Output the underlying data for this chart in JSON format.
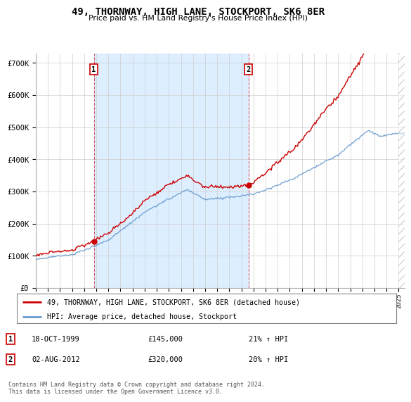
{
  "title": "49, THORNWAY, HIGH LANE, STOCKPORT, SK6 8ER",
  "subtitle": "Price paid vs. HM Land Registry's House Price Index (HPI)",
  "ylabel_ticks": [
    "£0",
    "£100K",
    "£200K",
    "£300K",
    "£400K",
    "£500K",
    "£600K",
    "£700K"
  ],
  "ylim": [
    0,
    730000
  ],
  "xlim_start": 1995.0,
  "xlim_end": 2025.5,
  "sale1_date": 1999.8,
  "sale1_price": 145000,
  "sale1_label": "1",
  "sale2_date": 2012.58,
  "sale2_price": 320000,
  "sale2_label": "2",
  "legend_house": "49, THORNWAY, HIGH LANE, STOCKPORT, SK6 8ER (detached house)",
  "legend_hpi": "HPI: Average price, detached house, Stockport",
  "footnote": "Contains HM Land Registry data © Crown copyright and database right 2024.\nThis data is licensed under the Open Government Licence v3.0.",
  "line_color_house": "#cc0000",
  "line_color_hpi": "#6699cc",
  "shade_color": "#ddeeff",
  "vline_color": "#cc0000",
  "grid_color": "#cccccc",
  "background_color": "#ffffff",
  "hpi_seed": 12,
  "house_seed": 99
}
